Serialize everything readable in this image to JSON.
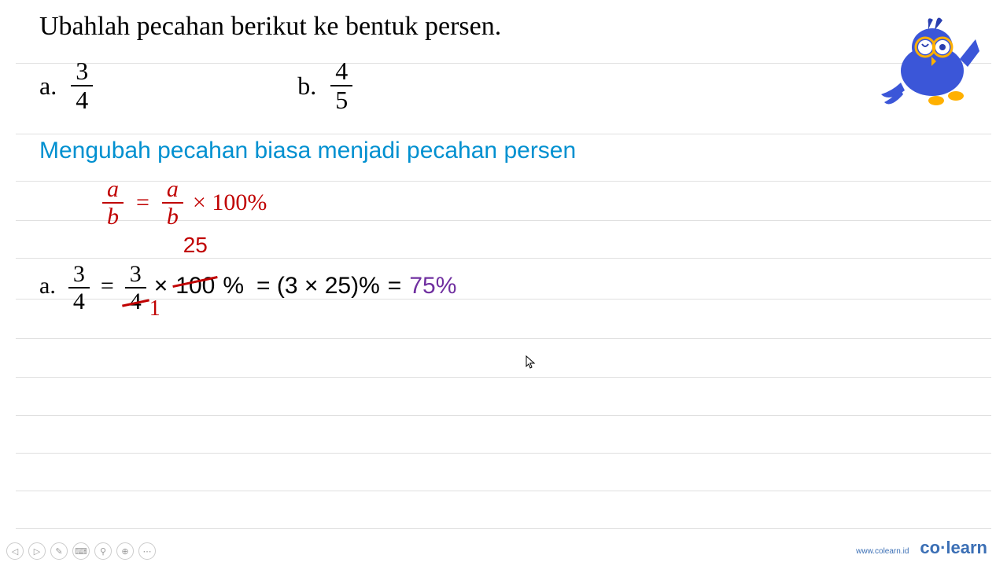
{
  "question": {
    "title": "Ubahlah pecahan berikut ke bentuk persen.",
    "options": [
      {
        "label": "a.",
        "numerator": "3",
        "denominator": "4"
      },
      {
        "label": "b.",
        "numerator": "4",
        "denominator": "5"
      }
    ]
  },
  "subtitle": "Mengubah pecahan biasa menjadi pecahan persen",
  "formula": {
    "lhs_num": "a",
    "lhs_den": "b",
    "eq": "=",
    "rhs_num": "a",
    "rhs_den": "b",
    "tail": "× 100%"
  },
  "solution": {
    "label": "a.",
    "f1_num": "3",
    "f1_den": "4",
    "eq1": "=",
    "f2_num": "3",
    "f2_den": "4",
    "times": "×",
    "hundred": "100",
    "percent": "%",
    "cancel_top": "25",
    "cancel_bottom": "1",
    "eq2": "= (3 × 25)%",
    "eq3": "=",
    "result": "75%"
  },
  "colors": {
    "title": "#000000",
    "subtitle": "#0090d0",
    "formula": "#c00000",
    "cancel": "#c00000",
    "result": "#7030a0",
    "mascot_body": "#3b56d8",
    "mascot_accent": "#2a3fb0",
    "glasses": "#ffb000",
    "rule": "#e0e0e0",
    "footer": "#3b6fb5"
  },
  "ruled_lines_top": [
    80,
    170,
    230,
    280,
    328,
    380,
    430,
    480,
    528,
    576,
    624,
    672
  ],
  "footer": {
    "url": "www.colearn.id",
    "logo_pre": "co",
    "logo_dot": "·",
    "logo_post": "learn"
  },
  "toolbar_icons": [
    "◁",
    "▷",
    "✎",
    "⌨",
    "⚲",
    "⊕",
    "⋯"
  ]
}
